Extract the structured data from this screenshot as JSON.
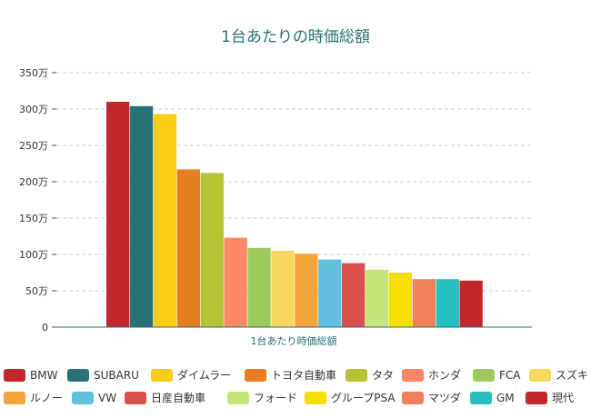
{
  "chart_data": {
    "type": "bar",
    "title": "1台あたりの時価総額",
    "xlabel": "",
    "ylabel": "",
    "category": "1台あたり時価総額",
    "ylim": [
      0,
      3500000
    ],
    "yticks": [
      {
        "value": 0,
        "label": "0"
      },
      {
        "value": 500000,
        "label": "50万"
      },
      {
        "value": 1000000,
        "label": "100万"
      },
      {
        "value": 1500000,
        "label": "150万"
      },
      {
        "value": 2000000,
        "label": "200万"
      },
      {
        "value": 2500000,
        "label": "250万"
      },
      {
        "value": 3000000,
        "label": "300万"
      },
      {
        "value": 3500000,
        "label": "350万"
      }
    ],
    "grid": true,
    "legend_position": "bottom",
    "series": [
      {
        "name": "BMW",
        "value": 3100000,
        "color": "#c1272d"
      },
      {
        "name": "SUBARU",
        "value": 3040000,
        "color": "#277378"
      },
      {
        "name": "ダイムラー",
        "value": 2930000,
        "color": "#f9cc16"
      },
      {
        "name": "トヨタ自動車",
        "value": 2170000,
        "color": "#e67e22"
      },
      {
        "name": "タタ",
        "value": 2120000,
        "color": "#b5c334"
      },
      {
        "name": "ホンダ",
        "value": 1230000,
        "color": "#fe8764"
      },
      {
        "name": "FCA",
        "value": 1090000,
        "color": "#9cca5c"
      },
      {
        "name": "スズキ",
        "value": 1050000,
        "color": "#fad860"
      },
      {
        "name": "ルノー",
        "value": 1010000,
        "color": "#f3a43b"
      },
      {
        "name": "VW",
        "value": 930000,
        "color": "#60c0dd"
      },
      {
        "name": "日産自動車",
        "value": 880000,
        "color": "#d7504b"
      },
      {
        "name": "フォード",
        "value": 790000,
        "color": "#c6e579"
      },
      {
        "name": "グループPSA",
        "value": 750000,
        "color": "#f4e001"
      },
      {
        "name": "マツダ",
        "value": 660000,
        "color": "#f0805a"
      },
      {
        "name": "GM",
        "value": 660000,
        "color": "#26c0c0"
      },
      {
        "name": "現代",
        "value": 640000,
        "color": "#c1272d"
      }
    ]
  }
}
